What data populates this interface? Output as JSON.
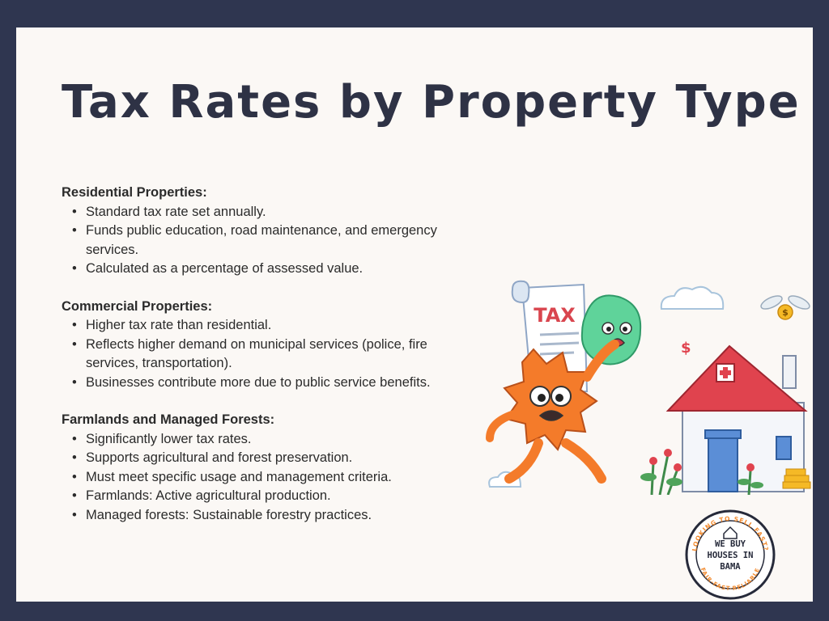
{
  "title": "Tax Rates by Property Type",
  "sections": [
    {
      "heading": "Residential Properties:",
      "items": [
        "Standard tax rate set annually.",
        "Funds public education, road maintenance, and emergency services.",
        "Calculated as a percentage of assessed value."
      ]
    },
    {
      "heading": "Commercial Properties:",
      "items": [
        "Higher tax rate than residential.",
        "Reflects higher demand on municipal services (police, fire services, transportation).",
        "Businesses contribute more due to public service benefits."
      ]
    },
    {
      "heading": "Farmlands and Managed Forests:",
      "items": [
        "Significantly lower tax rates.",
        "Supports agricultural and forest preservation.",
        "Must meet specific usage and management criteria.",
        "Farmlands: Active agricultural production.",
        "Managed forests: Sustainable forestry practices."
      ]
    }
  ],
  "illustration": {
    "scroll_label": "TAX",
    "dollar_sign": "$"
  },
  "badge": {
    "top_arc": "LOOKING TO SELL FAST?",
    "line1": "WE BUY",
    "line2": "HOUSES IN",
    "line3": "BAMA",
    "bottom_arc": "FAIR-FAST-RELIABLE"
  },
  "colors": {
    "frame": "#2f3650",
    "card": "#fbf8f5",
    "title": "#2e3245",
    "roof": "#e0434e",
    "character": "#f47b2a",
    "blob": "#5fd39a",
    "badge_accent": "#f28a2e"
  }
}
